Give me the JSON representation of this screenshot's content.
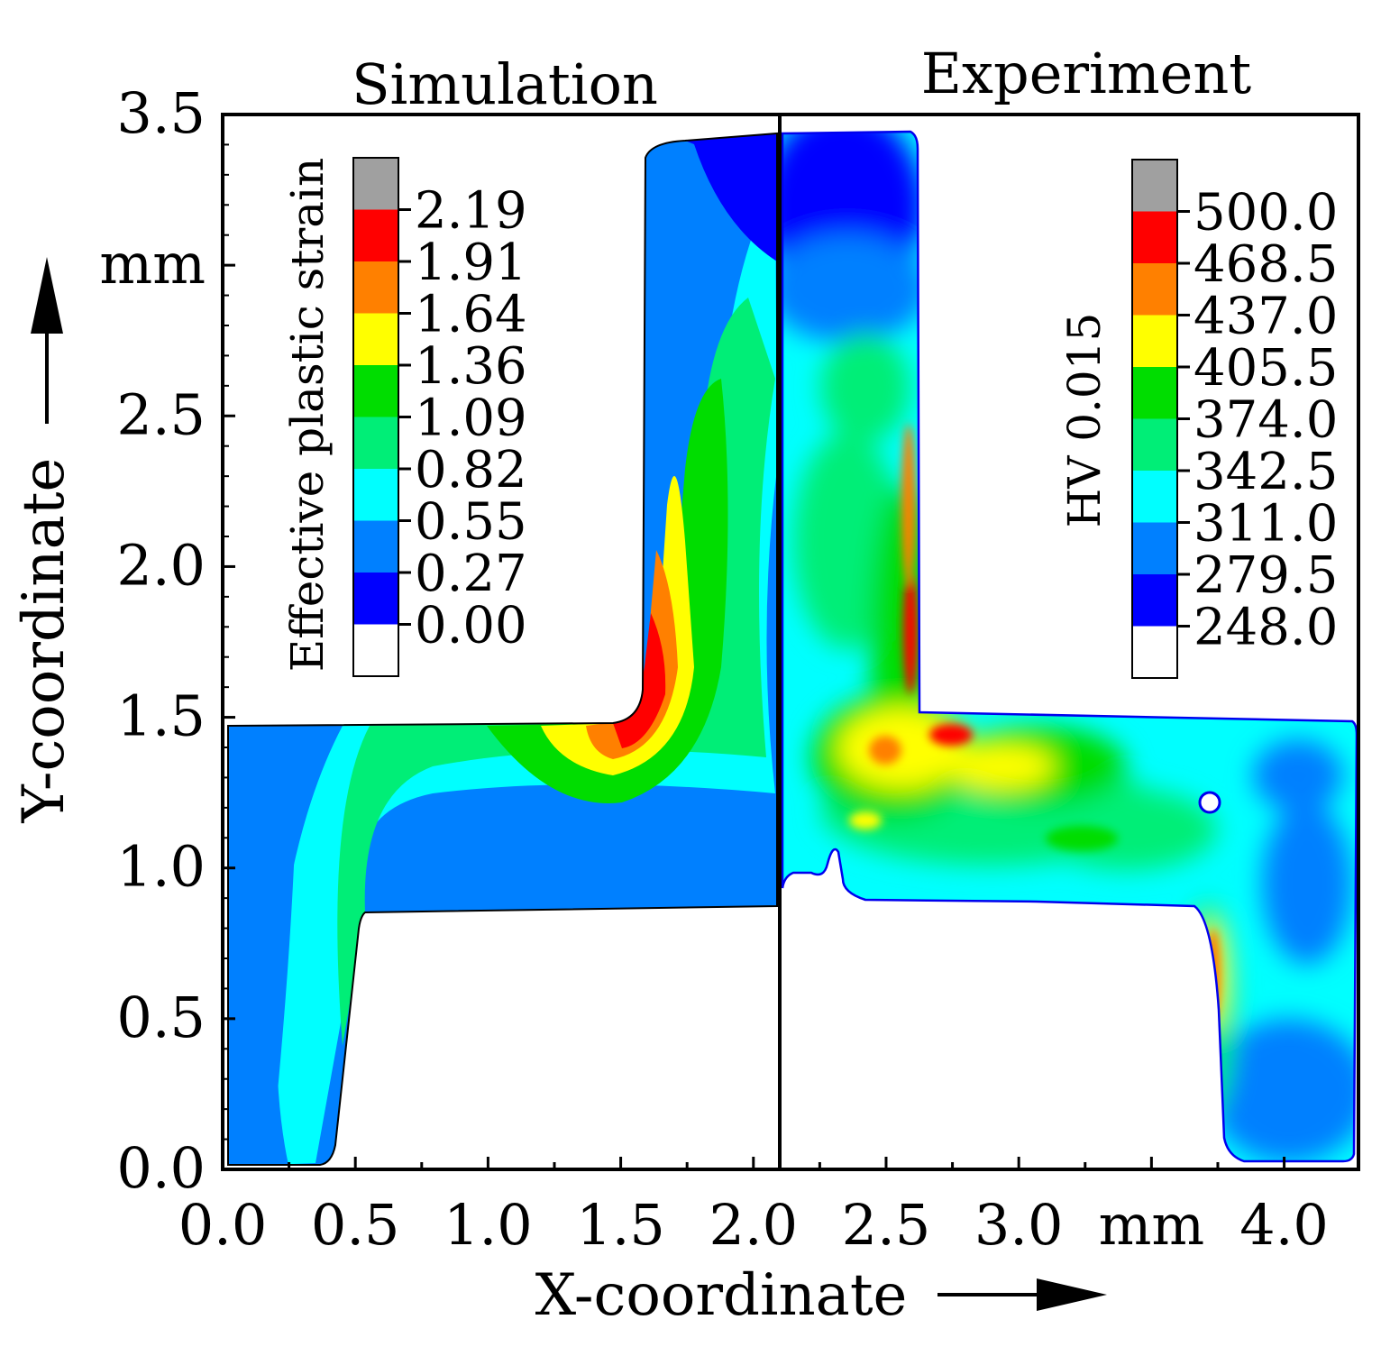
{
  "chart_data": {
    "type": "heatmap",
    "panels": [
      {
        "name": "simulation",
        "title": "Simulation"
      },
      {
        "name": "experiment",
        "title": "Experiment"
      }
    ],
    "xlabel": "X-coordinate",
    "ylabel": "Y-coordinate",
    "x_unit": "mm",
    "y_unit": "mm",
    "xlim": [
      0.0,
      4.28
    ],
    "ylim": [
      0.0,
      3.5
    ],
    "x_ticks": [
      {
        "value": 0.0,
        "label": "0.0"
      },
      {
        "value": 0.5,
        "label": "0.5"
      },
      {
        "value": 1.0,
        "label": "1.0"
      },
      {
        "value": 1.5,
        "label": "1.5"
      },
      {
        "value": 2.0,
        "label": "2.0"
      },
      {
        "value": 2.5,
        "label": "2.5"
      },
      {
        "value": 3.0,
        "label": "3.0"
      },
      {
        "value": 3.5,
        "label": "mm"
      },
      {
        "value": 4.0,
        "label": "4.0"
      }
    ],
    "y_ticks": [
      {
        "value": 0.0,
        "label": "0.0"
      },
      {
        "value": 0.5,
        "label": "0.5"
      },
      {
        "value": 1.0,
        "label": "1.0"
      },
      {
        "value": 1.5,
        "label": "1.5"
      },
      {
        "value": 2.0,
        "label": "2.0"
      },
      {
        "value": 2.5,
        "label": "2.5"
      },
      {
        "value": 3.0,
        "label": "mm"
      },
      {
        "value": 3.5,
        "label": "3.5"
      }
    ],
    "divider_x": 2.1,
    "colorbars": [
      {
        "name": "strain",
        "title": "Effective plastic strain",
        "labels": [
          "2.19",
          "1.91",
          "1.64",
          "1.36",
          "1.09",
          "0.82",
          "0.55",
          "0.27",
          "0.00"
        ],
        "colors": [
          "#a0a0a0",
          "#ff0000",
          "#ff8000",
          "#ffff00",
          "#00dd00",
          "#00ee77",
          "#00ffff",
          "#0080ff",
          "#0000ff",
          "#ffffff"
        ]
      },
      {
        "name": "hardness",
        "title": "HV 0.015",
        "labels": [
          "500.0",
          "468.5",
          "437.0",
          "405.5",
          "374.0",
          "342.5",
          "311.0",
          "279.5",
          "248.0"
        ],
        "colors": [
          "#a0a0a0",
          "#ff0000",
          "#ff8000",
          "#ffff00",
          "#00dd00",
          "#00ee77",
          "#00ffff",
          "#0080ff",
          "#0000ff",
          "#ffffff"
        ]
      }
    ],
    "grid": false
  }
}
